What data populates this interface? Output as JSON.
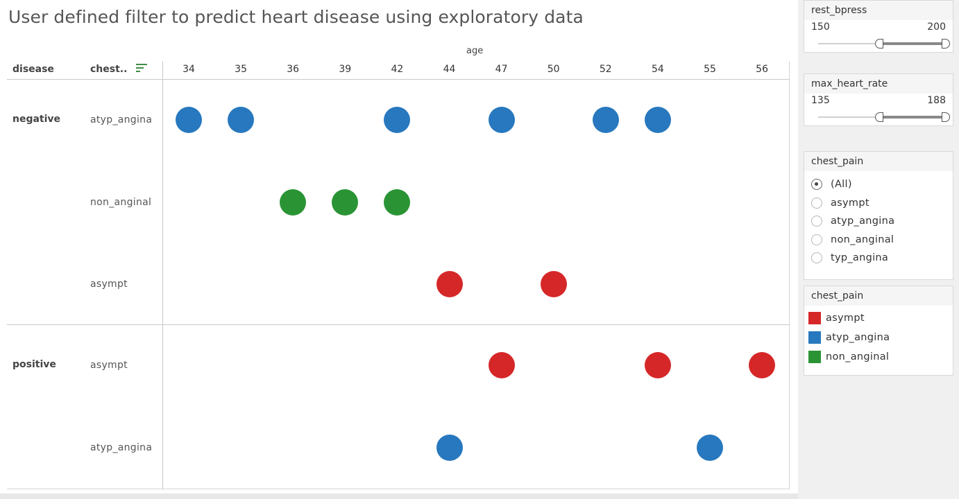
{
  "title": "User defined filter to predict heart disease using exploratory data",
  "headers": {
    "disease": "disease",
    "chest": "chest..",
    "age": "age"
  },
  "colors": {
    "asympt": "#d62728",
    "atyp_angina": "#2778be",
    "non_anginal": "#2a9434"
  },
  "chart_data": {
    "type": "scatter",
    "x_title": "age",
    "x_categories": [
      "34",
      "35",
      "36",
      "39",
      "42",
      "44",
      "47",
      "50",
      "52",
      "54",
      "55",
      "56"
    ],
    "rows": [
      {
        "disease": "negative",
        "chest_pain": "atyp_angina",
        "ages": [
          "34",
          "35",
          "42",
          "47",
          "52",
          "54"
        ]
      },
      {
        "disease": "",
        "chest_pain": "non_anginal",
        "ages": [
          "36",
          "39",
          "42"
        ]
      },
      {
        "disease": "",
        "chest_pain": "asympt",
        "ages": [
          "44",
          "50"
        ]
      },
      {
        "disease": "positive",
        "chest_pain": "asympt",
        "ages": [
          "47",
          "54",
          "56"
        ]
      },
      {
        "disease": "",
        "chest_pain": "atyp_angina",
        "ages": [
          "44",
          "55"
        ]
      }
    ]
  },
  "filters": {
    "rest_bpress": {
      "label": "rest_bpress",
      "min": "150",
      "max": "200"
    },
    "max_heart_rate": {
      "label": "max_heart_rate",
      "min": "135",
      "max": "188"
    },
    "chest_pain": {
      "label": "chest_pain",
      "options": [
        "(All)",
        "asympt",
        "atyp_angina",
        "non_anginal",
        "typ_angina"
      ],
      "selected": "(All)"
    }
  },
  "legend": {
    "label": "chest_pain",
    "items": [
      {
        "label": "asympt",
        "color": "#d62728"
      },
      {
        "label": "atyp_angina",
        "color": "#2778be"
      },
      {
        "label": "non_anginal",
        "color": "#2a9434"
      }
    ]
  }
}
